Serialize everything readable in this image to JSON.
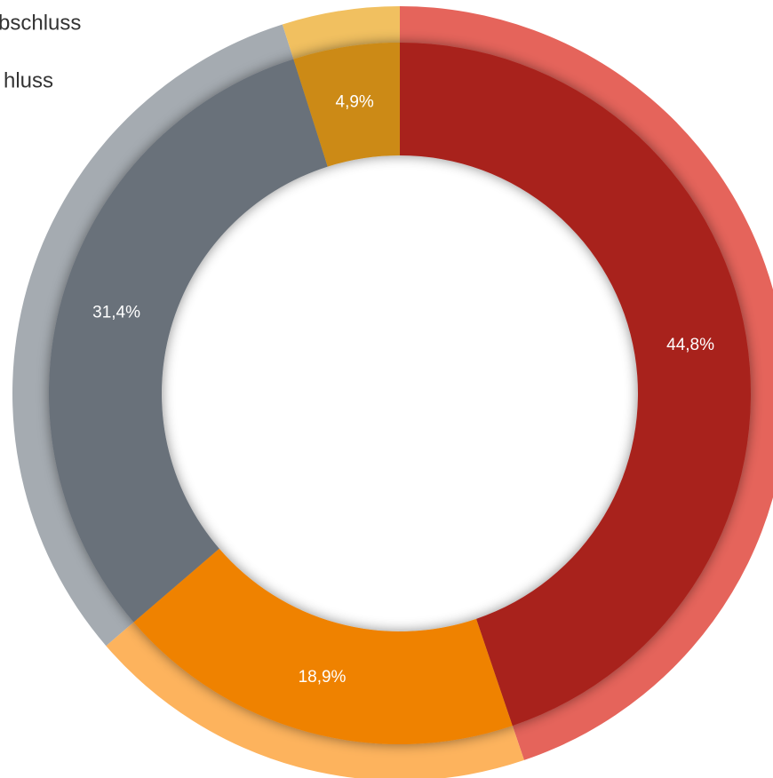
{
  "chart_data": {
    "type": "donut",
    "legend_texts": [
      "bschluss",
      "hluss"
    ],
    "values": [
      44.8,
      18.9,
      31.4,
      4.9
    ],
    "value_labels": [
      "44,8%",
      "18,9%",
      "31,4%",
      "4,9%"
    ],
    "colors": [
      "#a8221c",
      "#ef8200",
      "#69717a",
      "#cc8a14"
    ],
    "outer_colors": [
      "#e5645b",
      "#fdb35d",
      "#a5abb1",
      "#f1c060"
    ]
  }
}
